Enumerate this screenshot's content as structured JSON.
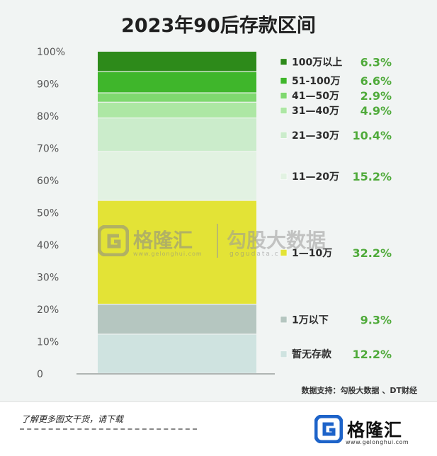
{
  "chart_data": {
    "type": "bar",
    "stacked": true,
    "title": "2023年90后存款区间",
    "ylim": [
      0,
      100
    ],
    "y_ticks": [
      "0",
      "10%",
      "20%",
      "30%",
      "40%",
      "50%",
      "60%",
      "70%",
      "80%",
      "90%",
      "100%"
    ],
    "segments": [
      {
        "label": "暂无存款",
        "value": 12.2,
        "value_label": "12.2%",
        "color": "#cfe3e0"
      },
      {
        "label": "1万以下",
        "value": 9.3,
        "value_label": "9.3%",
        "color": "#b5c6c0"
      },
      {
        "label": "1—10万",
        "value": 32.2,
        "value_label": "32.2%",
        "color": "#e3e336"
      },
      {
        "label": "11—20万",
        "value": 15.2,
        "value_label": "15.2%",
        "color": "#e2f2e2"
      },
      {
        "label": "21—30万",
        "value": 10.4,
        "value_label": "10.4%",
        "color": "#cbeccb"
      },
      {
        "label": "31—40万",
        "value": 4.9,
        "value_label": "4.9%",
        "color": "#ade7a4"
      },
      {
        "label": "41—50万",
        "value": 2.9,
        "value_label": "2.9%",
        "color": "#7fd86f"
      },
      {
        "label": "51-100万",
        "value": 6.6,
        "value_label": "6.6%",
        "color": "#3fb62b"
      },
      {
        "label": "100万以上",
        "value": 6.3,
        "value_label": "6.3%",
        "color": "#2d8a1a"
      }
    ],
    "value_label_color": "#4faa3a"
  },
  "source": "数据支持：勾股大数据 、DT财经",
  "watermark": {
    "name": "格隆汇",
    "domain": "www.gelonghui.com",
    "name2": "勾股大数据",
    "domain2": "gogudata.c"
  },
  "footer": {
    "text": "了解更多图文干货，请下载",
    "logo_text": "格隆汇",
    "logo_domain": "www.gelonghui.com"
  },
  "colors": {
    "axis": "#9aa09e",
    "tick_text": "#555555",
    "logo_blue": "#1d63c9"
  }
}
